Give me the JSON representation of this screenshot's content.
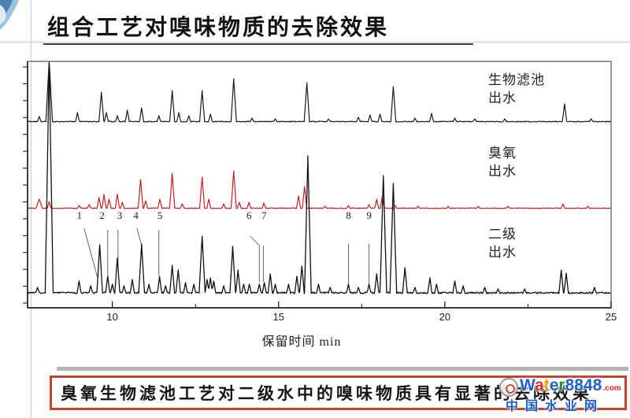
{
  "slide": {
    "title": "组合工艺对嗅味物质的去除效果",
    "conclusion": "臭氧生物滤池工艺对二级水中的嗅味物质具有显著的去除效果"
  },
  "watermark": {
    "brand_letters": [
      {
        "ch": "W",
        "color": "#1d62c6"
      },
      {
        "ch": "a",
        "color": "#d93025"
      },
      {
        "ch": "t",
        "color": "#f0a202"
      },
      {
        "ch": "e",
        "color": "#1d62c6"
      },
      {
        "ch": "r",
        "color": "#1e8e3e"
      },
      {
        "ch": "8",
        "color": "#1d62c6"
      },
      {
        "ch": "8",
        "color": "#1d62c6"
      },
      {
        "ch": "4",
        "color": "#1d62c6"
      },
      {
        "ch": "8",
        "color": "#1d62c6"
      }
    ],
    "domain_suffix": ".com",
    "site_name": "中国水业网"
  },
  "chart_data": {
    "type": "line",
    "title": "",
    "xlabel": "保留时间 min",
    "ylabel": "",
    "x_range": [
      7.45,
      25
    ],
    "x_ticks": [
      10,
      15,
      20,
      25
    ],
    "x_minor_ticks": [
      12.5,
      17.5,
      22.5
    ],
    "grid": false,
    "legend_position": "right-inside",
    "series": [
      {
        "name": "生物滤池出水",
        "label_lines": [
          "生物滤池",
          "出水"
        ],
        "color": "#1a1a1a",
        "noise": 1.1,
        "peaks": [
          [
            7.8,
            7
          ],
          [
            8.1,
            77,
            0.1
          ],
          [
            8.95,
            12
          ],
          [
            9.67,
            38
          ],
          [
            9.82,
            12
          ],
          [
            10.15,
            8
          ],
          [
            10.45,
            15
          ],
          [
            10.88,
            18
          ],
          [
            11.4,
            8
          ],
          [
            11.8,
            40
          ],
          [
            12.0,
            12
          ],
          [
            12.3,
            8
          ],
          [
            12.7,
            40
          ],
          [
            12.95,
            10
          ],
          [
            13.65,
            55
          ],
          [
            14.2,
            5
          ],
          [
            14.9,
            4
          ],
          [
            15.85,
            50
          ],
          [
            16.5,
            4
          ],
          [
            17.4,
            6
          ],
          [
            17.75,
            9
          ],
          [
            18.05,
            10
          ],
          [
            18.45,
            45
          ],
          [
            19.1,
            5
          ],
          [
            19.6,
            11
          ],
          [
            20.3,
            5
          ],
          [
            20.9,
            4
          ],
          [
            21.8,
            4
          ],
          [
            23.6,
            23
          ],
          [
            24.4,
            4
          ]
        ]
      },
      {
        "name": "臭氧出水",
        "label_lines": [
          "臭氧",
          "出水"
        ],
        "color": "#c41f1f",
        "noise": 1.0,
        "peaks": [
          [
            7.8,
            12,
            0.1
          ],
          [
            8.1,
            9
          ],
          [
            9.0,
            4
          ],
          [
            9.3,
            5
          ],
          [
            9.6,
            14
          ],
          [
            9.75,
            18
          ],
          [
            9.9,
            12
          ],
          [
            10.15,
            18
          ],
          [
            10.3,
            8
          ],
          [
            10.85,
            37
          ],
          [
            11.0,
            10
          ],
          [
            11.43,
            12
          ],
          [
            11.8,
            45
          ],
          [
            12.1,
            6
          ],
          [
            12.7,
            40
          ],
          [
            12.9,
            12
          ],
          [
            13.35,
            6
          ],
          [
            13.65,
            48
          ],
          [
            13.82,
            8
          ],
          [
            14.11,
            8
          ],
          [
            14.56,
            7
          ],
          [
            15.6,
            16
          ],
          [
            15.78,
            28
          ],
          [
            16.4,
            3
          ],
          [
            17.1,
            4
          ],
          [
            17.72,
            5
          ],
          [
            17.95,
            12
          ],
          [
            18.12,
            16
          ],
          [
            18.5,
            4
          ],
          [
            19.2,
            3
          ],
          [
            20.1,
            3
          ],
          [
            21.0,
            3
          ],
          [
            21.9,
            3
          ],
          [
            23.55,
            6
          ],
          [
            24.3,
            3
          ]
        ]
      },
      {
        "name": "二级出水",
        "label_lines": [
          "二级",
          "出水"
        ],
        "color": "#111111",
        "noise": 2.0,
        "peaks": [
          [
            7.75,
            8
          ],
          [
            8.1,
            293,
            0.12
          ],
          [
            9.0,
            16
          ],
          [
            9.35,
            10
          ],
          [
            9.62,
            62
          ],
          [
            9.86,
            22
          ],
          [
            10.0,
            12
          ],
          [
            10.15,
            45
          ],
          [
            10.35,
            10
          ],
          [
            10.6,
            18
          ],
          [
            10.88,
            63
          ],
          [
            11.1,
            12
          ],
          [
            11.42,
            22
          ],
          [
            11.6,
            10
          ],
          [
            11.8,
            36
          ],
          [
            11.98,
            30
          ],
          [
            12.2,
            14
          ],
          [
            12.45,
            12
          ],
          [
            12.7,
            73
          ],
          [
            12.85,
            18
          ],
          [
            12.95,
            20
          ],
          [
            13.05,
            16
          ],
          [
            13.35,
            10
          ],
          [
            13.62,
            60
          ],
          [
            13.78,
            30
          ],
          [
            13.95,
            12
          ],
          [
            14.12,
            12
          ],
          [
            14.42,
            12
          ],
          [
            14.57,
            14
          ],
          [
            14.75,
            25
          ],
          [
            14.9,
            12
          ],
          [
            15.3,
            12
          ],
          [
            15.55,
            22
          ],
          [
            15.7,
            35
          ],
          [
            15.88,
            175,
            0.1
          ],
          [
            16.2,
            12
          ],
          [
            16.55,
            8
          ],
          [
            17.1,
            12
          ],
          [
            17.4,
            8
          ],
          [
            17.72,
            12
          ],
          [
            17.95,
            25
          ],
          [
            18.15,
            150,
            0.1
          ],
          [
            18.45,
            140,
            0.1
          ],
          [
            18.8,
            33
          ],
          [
            19.1,
            8
          ],
          [
            19.55,
            20
          ],
          [
            19.75,
            12
          ],
          [
            20.3,
            16
          ],
          [
            20.55,
            10
          ],
          [
            21.2,
            8
          ],
          [
            21.6,
            6
          ],
          [
            22.4,
            6
          ],
          [
            23.5,
            30
          ],
          [
            23.65,
            26
          ],
          [
            24.5,
            8
          ]
        ]
      }
    ],
    "peak_numbers": [
      {
        "label": "1",
        "t": 9.01,
        "leader": [
          [
            9.15,
            290
          ],
          [
            9.55,
            352
          ]
        ]
      },
      {
        "label": "2",
        "t": 9.69,
        "leader": [
          [
            9.86,
            292
          ],
          [
            9.86,
            352
          ]
        ]
      },
      {
        "label": "3",
        "t": 10.22,
        "leader": [
          [
            10.17,
            292
          ],
          [
            10.17,
            345
          ]
        ]
      },
      {
        "label": "4",
        "t": 10.71,
        "leader": [
          [
            10.74,
            290
          ],
          [
            10.88,
            312
          ]
        ]
      },
      {
        "label": "5",
        "t": 11.43,
        "leader": [
          [
            11.4,
            292
          ],
          [
            11.4,
            350
          ]
        ]
      },
      {
        "label": "6",
        "t": 14.11,
        "leader": [
          [
            14.15,
            300
          ],
          [
            14.42,
            312
          ],
          [
            14.42,
            358
          ]
        ]
      },
      {
        "label": "7",
        "t": 14.56,
        "leader": [
          [
            14.54,
            312
          ],
          [
            14.54,
            358
          ]
        ]
      },
      {
        "label": "8",
        "t": 17.1,
        "leader": [
          [
            17.1,
            310
          ],
          [
            17.1,
            362
          ]
        ]
      },
      {
        "label": "9",
        "t": 17.72,
        "leader": [
          [
            17.72,
            310
          ],
          [
            17.72,
            362
          ]
        ]
      }
    ]
  }
}
